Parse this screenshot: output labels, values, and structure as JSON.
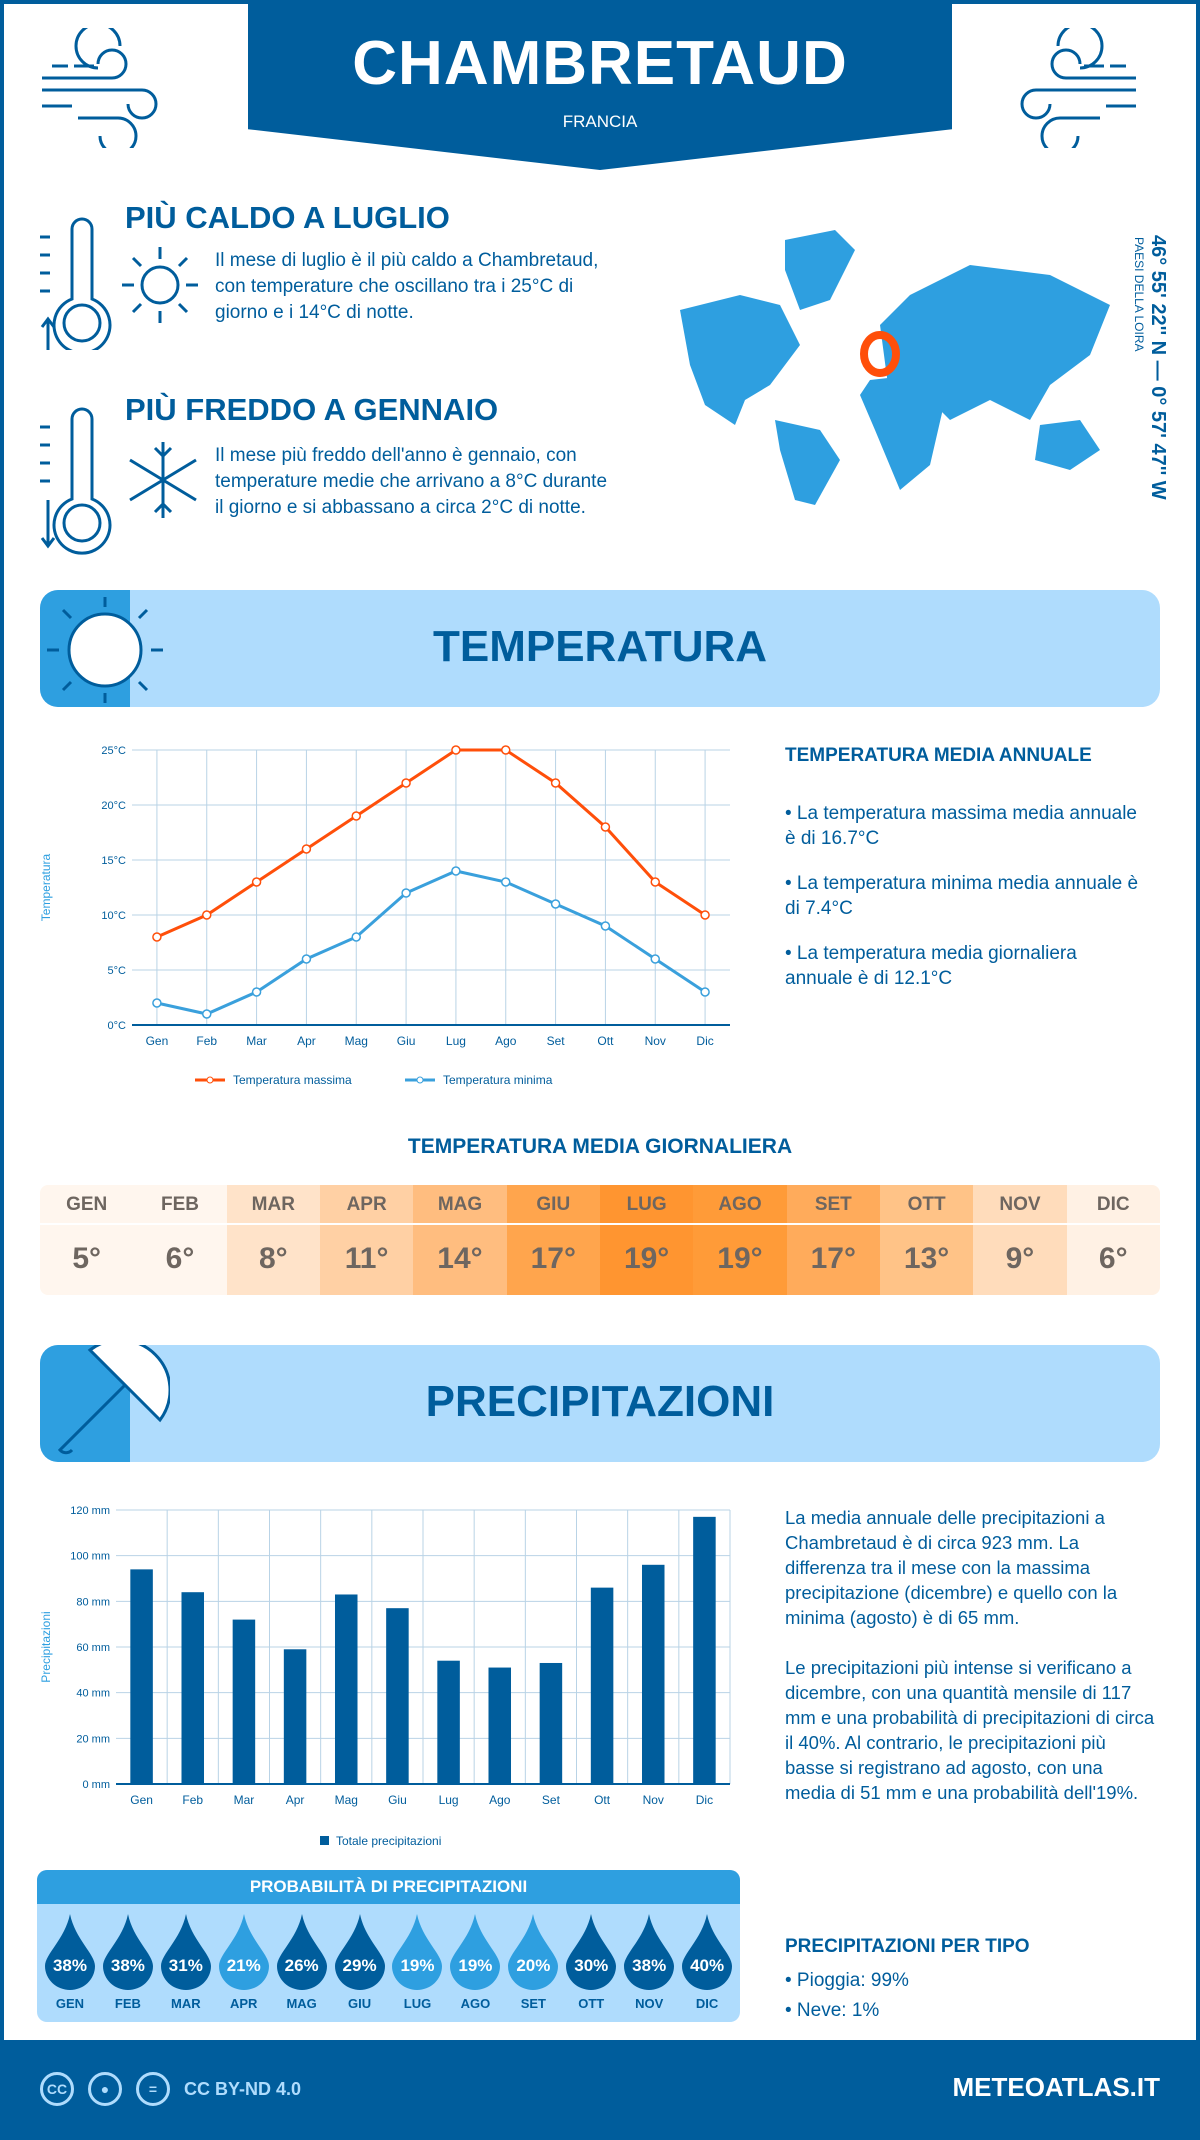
{
  "header": {
    "city": "CHAMBRETAUD",
    "country": "FRANCIA"
  },
  "hot": {
    "title": "PIÙ CALDO A LUGLIO",
    "text": "Il mese di luglio è il più caldo a Chambretaud, con temperature che oscillano tra i 25°C di giorno e i 14°C di notte."
  },
  "cold": {
    "title": "PIÙ FREDDO A GENNAIO",
    "text": "Il mese più freddo dell'anno è gennaio, con temperature medie che arrivano a 8°C durante il giorno e si abbassano a circa 2°C di notte."
  },
  "map": {
    "coords": "46° 55' 22'' N — 0° 57' 47'' W",
    "region": "PAESI DELLA LOIRA",
    "marker_color": "#ff4f0a",
    "land_color": "#2e9fe0"
  },
  "temp_section": {
    "title": "TEMPERATURA"
  },
  "temp_summary": {
    "heading": "TEMPERATURA MEDIA ANNUALE",
    "items": [
      "• La temperatura massima media annuale è di 16.7°C",
      "• La temperatura minima media annuale è di 7.4°C",
      "• La temperatura media giornaliera annuale è di 12.1°C"
    ]
  },
  "daily": {
    "heading": "TEMPERATURA MEDIA GIORNALIERA",
    "months": [
      "GEN",
      "FEB",
      "MAR",
      "APR",
      "MAG",
      "GIU",
      "LUG",
      "AGO",
      "SET",
      "OTT",
      "NOV",
      "DIC"
    ],
    "values": [
      "5°",
      "6°",
      "8°",
      "11°",
      "14°",
      "17°",
      "19°",
      "19°",
      "17°",
      "13°",
      "9°",
      "6°"
    ],
    "colors": [
      "#fff6ee",
      "#fff6ee",
      "#ffe3c9",
      "#ffd0a4",
      "#ffbd7f",
      "#ffa54d",
      "#ff9530",
      "#ff9b38",
      "#ffab5b",
      "#ffc387",
      "#ffdcbb",
      "#fff1e4"
    ]
  },
  "precip_section": {
    "title": "PRECIPITAZIONI"
  },
  "precip_text": {
    "p1": "La media annuale delle precipitazioni a Chambretaud è di circa 923 mm. La differenza tra il mese con la massima precipitazione (dicembre) e quello con la minima (agosto) è di 65 mm.",
    "p2": "Le precipitazioni più intense si verificano a dicembre, con una quantità mensile di 117 mm e una probabilità di precipitazioni di circa il 40%. Al contrario, le precipitazioni più basse si registrano ad agosto, con una media di 51 mm e una probabilità dell'19%."
  },
  "probability": {
    "title": "PROBABILITÀ DI PRECIPITAZIONI",
    "months": [
      "GEN",
      "FEB",
      "MAR",
      "APR",
      "MAG",
      "GIU",
      "LUG",
      "AGO",
      "SET",
      "OTT",
      "NOV",
      "DIC"
    ],
    "values": [
      "38%",
      "38%",
      "31%",
      "21%",
      "26%",
      "29%",
      "19%",
      "19%",
      "20%",
      "30%",
      "38%",
      "40%"
    ],
    "colors": [
      "#005d9c",
      "#005d9c",
      "#005d9c",
      "#2e9fe0",
      "#005d9c",
      "#005d9c",
      "#2e9fe0",
      "#2e9fe0",
      "#2e9fe0",
      "#005d9c",
      "#005d9c",
      "#005d9c"
    ]
  },
  "precip_type": {
    "heading": "PRECIPITAZIONI PER TIPO",
    "items": [
      "• Pioggia: 99%",
      "• Neve: 1%"
    ]
  },
  "footer": {
    "license": "CC BY-ND 4.0",
    "site": "METEOATLAS.IT",
    "cc": "CC",
    "eq": "="
  },
  "chart_data": [
    {
      "type": "line",
      "categories": [
        "Gen",
        "Feb",
        "Mar",
        "Apr",
        "Mag",
        "Giu",
        "Lug",
        "Ago",
        "Set",
        "Ott",
        "Nov",
        "Dic"
      ],
      "ylabel": "Temperatura",
      "yticks": [
        "0°C",
        "5°C",
        "10°C",
        "15°C",
        "20°C",
        "25°C"
      ],
      "ylim": [
        0,
        25
      ],
      "grid": true,
      "legend": "bottom",
      "series": [
        {
          "name": "Temperatura massima",
          "color": "#ff4f0a",
          "values": [
            8,
            10,
            13,
            16,
            19,
            22,
            25,
            25,
            22,
            18,
            13,
            10
          ]
        },
        {
          "name": "Temperatura minima",
          "color": "#3aa0dc",
          "values": [
            2,
            1,
            3,
            6,
            8,
            12,
            14,
            13,
            11,
            9,
            6,
            3
          ]
        }
      ]
    },
    {
      "type": "bar",
      "categories": [
        "Gen",
        "Feb",
        "Mar",
        "Apr",
        "Mag",
        "Giu",
        "Lug",
        "Ago",
        "Set",
        "Ott",
        "Nov",
        "Dic"
      ],
      "ylabel": "Precipitazioni",
      "yticks": [
        "0 mm",
        "20 mm",
        "40 mm",
        "60 mm",
        "80 mm",
        "100 mm",
        "120 mm"
      ],
      "ylim": [
        0,
        120
      ],
      "grid": true,
      "legend": "bottom",
      "series": [
        {
          "name": "Totale precipitazioni",
          "color": "#005d9c",
          "values": [
            94,
            84,
            72,
            59,
            83,
            77,
            54,
            51,
            53,
            86,
            96,
            117
          ]
        }
      ]
    }
  ]
}
